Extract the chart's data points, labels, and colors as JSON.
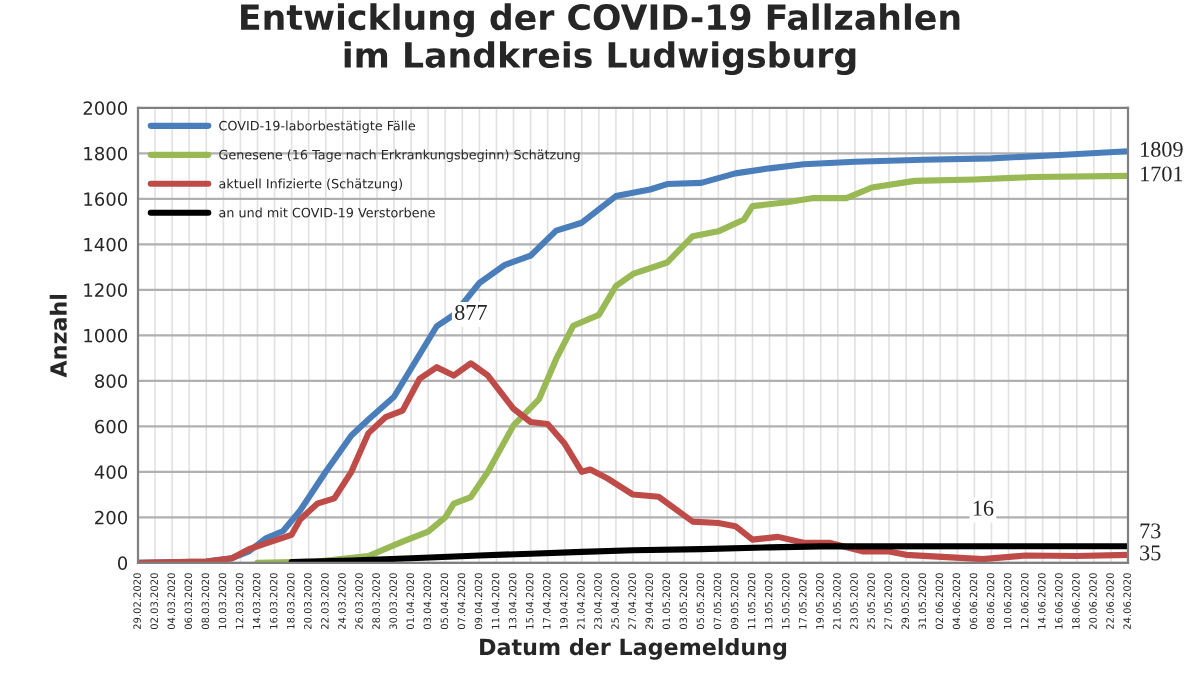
{
  "chart_data": {
    "type": "line",
    "title": "Entwicklung der COVID-19 Fallzahlen\nim Landkreis Ludwigsburg",
    "xlabel": "Datum der Lagemeldung",
    "ylabel": "Anzahl",
    "xlim": [
      "2020-02-29",
      "2020-06-24"
    ],
    "ylim": [
      0,
      2000
    ],
    "yticks": [
      0,
      200,
      400,
      600,
      800,
      1000,
      1200,
      1400,
      1600,
      1800,
      2000
    ],
    "xticks": [
      {
        "value": "2020-02-29",
        "label": "29.02.2020"
      },
      {
        "value": "2020-03-02",
        "label": "02.03.2020"
      },
      {
        "value": "2020-03-04",
        "label": "04.03.2020"
      },
      {
        "value": "2020-03-06",
        "label": "06.03.2020"
      },
      {
        "value": "2020-03-08",
        "label": "08.03.2020"
      },
      {
        "value": "2020-03-10",
        "label": "10.03.2020"
      },
      {
        "value": "2020-03-12",
        "label": "12.03.2020"
      },
      {
        "value": "2020-03-14",
        "label": "14.03.2020"
      },
      {
        "value": "2020-03-16",
        "label": "16.03.2020"
      },
      {
        "value": "2020-03-18",
        "label": "18.03.2020"
      },
      {
        "value": "2020-03-20",
        "label": "20.03.2020"
      },
      {
        "value": "2020-03-22",
        "label": "22.03.2020"
      },
      {
        "value": "2020-03-24",
        "label": "24.03.2020"
      },
      {
        "value": "2020-03-26",
        "label": "26.03.2020"
      },
      {
        "value": "2020-03-28",
        "label": "28.03.2020"
      },
      {
        "value": "2020-03-30",
        "label": "30.03.2020"
      },
      {
        "value": "2020-04-01",
        "label": "01.04.2020"
      },
      {
        "value": "2020-04-03",
        "label": "03.04.2020"
      },
      {
        "value": "2020-04-05",
        "label": "05.04.2020"
      },
      {
        "value": "2020-04-07",
        "label": "07.04.2020"
      },
      {
        "value": "2020-04-09",
        "label": "09.04.2020"
      },
      {
        "value": "2020-04-11",
        "label": "11.04.2020"
      },
      {
        "value": "2020-04-13",
        "label": "13.04.2020"
      },
      {
        "value": "2020-04-15",
        "label": "15.04.2020"
      },
      {
        "value": "2020-04-17",
        "label": "17.04.2020"
      },
      {
        "value": "2020-04-19",
        "label": "19.04.2020"
      },
      {
        "value": "2020-04-21",
        "label": "21.04.2020"
      },
      {
        "value": "2020-04-23",
        "label": "23.04.2020"
      },
      {
        "value": "2020-04-25",
        "label": "25.04.2020"
      },
      {
        "value": "2020-04-27",
        "label": "27.04.2020"
      },
      {
        "value": "2020-04-29",
        "label": "29.04.2020"
      },
      {
        "value": "2020-05-01",
        "label": "01.05.2020"
      },
      {
        "value": "2020-05-03",
        "label": "03.05.2020"
      },
      {
        "value": "2020-05-05",
        "label": "05.05.2020"
      },
      {
        "value": "2020-05-07",
        "label": "07.05.2020"
      },
      {
        "value": "2020-05-09",
        "label": "09.05.2020"
      },
      {
        "value": "2020-05-11",
        "label": "11.05.2020"
      },
      {
        "value": "2020-05-13",
        "label": "13.05.2020"
      },
      {
        "value": "2020-05-15",
        "label": "15.05.2020"
      },
      {
        "value": "2020-05-17",
        "label": "17.05.2020"
      },
      {
        "value": "2020-05-19",
        "label": "19.05.2020"
      },
      {
        "value": "2020-05-21",
        "label": "21.05.2020"
      },
      {
        "value": "2020-05-23",
        "label": "23.05.2020"
      },
      {
        "value": "2020-05-25",
        "label": "25.05.2020"
      },
      {
        "value": "2020-05-27",
        "label": "27.05.2020"
      },
      {
        "value": "2020-05-29",
        "label": "29.05.2020"
      },
      {
        "value": "2020-05-31",
        "label": "31.05.2020"
      },
      {
        "value": "2020-06-02",
        "label": "02.06.2020"
      },
      {
        "value": "2020-06-04",
        "label": "04.06.2020"
      },
      {
        "value": "2020-06-06",
        "label": "06.06.2020"
      },
      {
        "value": "2020-06-08",
        "label": "08.06.2020"
      },
      {
        "value": "2020-06-10",
        "label": "10.06.2020"
      },
      {
        "value": "2020-06-12",
        "label": "12.06.2020"
      },
      {
        "value": "2020-06-14",
        "label": "14.06.2020"
      },
      {
        "value": "2020-06-16",
        "label": "16.06.2020"
      },
      {
        "value": "2020-06-18",
        "label": "18.06.2020"
      },
      {
        "value": "2020-06-20",
        "label": "20.06.2020"
      },
      {
        "value": "2020-06-22",
        "label": "22.06.2020"
      },
      {
        "value": "2020-06-24",
        "label": "24.06.2020"
      }
    ],
    "grid": true,
    "legend": "top left",
    "line_style": "solid",
    "marker": "none",
    "series": [
      {
        "name": "COVID-19-laborbestätigte Fälle",
        "color": "#4a7ebb",
        "x": [
          "2020-02-29",
          "2020-03-08",
          "2020-03-11",
          "2020-03-13",
          "2020-03-15",
          "2020-03-17",
          "2020-03-19",
          "2020-03-22",
          "2020-03-25",
          "2020-03-27",
          "2020-03-30",
          "2020-04-04",
          "2020-04-06",
          "2020-04-09",
          "2020-04-12",
          "2020-04-15",
          "2020-04-18",
          "2020-04-21",
          "2020-04-25",
          "2020-04-29",
          "2020-05-01",
          "2020-05-05",
          "2020-05-09",
          "2020-05-13",
          "2020-05-17",
          "2020-05-23",
          "2020-05-31",
          "2020-06-08",
          "2020-06-16",
          "2020-06-24"
        ],
        "values": [
          0,
          5,
          20,
          50,
          108,
          140,
          230,
          400,
          560,
          630,
          730,
          1040,
          1090,
          1230,
          1310,
          1350,
          1460,
          1495,
          1612,
          1641,
          1665,
          1670,
          1712,
          1734,
          1752,
          1763,
          1772,
          1778,
          1793,
          1809
        ]
      },
      {
        "name": "Genesene (16 Tage nach Erkrankungsbeginn) Schätzung",
        "color": "#98b954",
        "x": [
          "2020-03-14",
          "2020-03-21",
          "2020-03-27",
          "2020-03-31",
          "2020-04-03",
          "2020-04-05",
          "2020-04-06",
          "2020-04-08",
          "2020-04-10",
          "2020-04-13",
          "2020-04-16",
          "2020-04-18",
          "2020-04-20",
          "2020-04-23",
          "2020-04-25",
          "2020-04-27",
          "2020-05-01",
          "2020-05-04",
          "2020-05-07",
          "2020-05-10",
          "2020-05-11",
          "2020-05-15",
          "2020-05-18",
          "2020-05-22",
          "2020-05-25",
          "2020-05-30",
          "2020-06-06",
          "2020-06-13",
          "2020-06-24"
        ],
        "values": [
          0,
          5,
          30,
          93,
          137,
          200,
          260,
          289,
          400,
          604,
          720,
          896,
          1042,
          1090,
          1217,
          1270,
          1320,
          1436,
          1457,
          1509,
          1568,
          1585,
          1603,
          1603,
          1650,
          1679,
          1685,
          1696,
          1701
        ]
      },
      {
        "name": "aktuell Infizierte (Schätzung)",
        "color": "#be4b48",
        "x": [
          "2020-02-29",
          "2020-03-08",
          "2020-03-11",
          "2020-03-13",
          "2020-03-15",
          "2020-03-18",
          "2020-03-19",
          "2020-03-21",
          "2020-03-23",
          "2020-03-25",
          "2020-03-27",
          "2020-03-29",
          "2020-03-31",
          "2020-04-02",
          "2020-04-04",
          "2020-04-06",
          "2020-04-08",
          "2020-04-10",
          "2020-04-13",
          "2020-04-15",
          "2020-04-17",
          "2020-04-19",
          "2020-04-21",
          "2020-04-22",
          "2020-04-24",
          "2020-04-27",
          "2020-04-30",
          "2020-05-04",
          "2020-05-07",
          "2020-05-09",
          "2020-05-11",
          "2020-05-14",
          "2020-05-17",
          "2020-05-20",
          "2020-05-24",
          "2020-05-27",
          "2020-05-29",
          "2020-06-07",
          "2020-06-12",
          "2020-06-18",
          "2020-06-24"
        ],
        "values": [
          0,
          5,
          20,
          60,
          85,
          123,
          190,
          260,
          283,
          400,
          570,
          640,
          669,
          809,
          860,
          823,
          877,
          823,
          677,
          619,
          610,
          523,
          400,
          410,
          371,
          300,
          290,
          181,
          175,
          161,
          102,
          114,
          88,
          88,
          50,
          50,
          35,
          16,
          32,
          30,
          35
        ]
      },
      {
        "name": "an und mit COVID-19 Verstorbene",
        "color": "#000000",
        "x": [
          "2020-03-18",
          "2020-03-25",
          "2020-04-01",
          "2020-04-09",
          "2020-04-15",
          "2020-04-21",
          "2020-04-27",
          "2020-05-05",
          "2020-05-13",
          "2020-05-19",
          "2020-06-24"
        ],
        "values": [
          3,
          10,
          20,
          32,
          40,
          48,
          55,
          60,
          68,
          72,
          73
        ]
      }
    ],
    "annotations": [
      {
        "text": "877",
        "x": "2020-04-08",
        "y": 877
      },
      {
        "text": "1809",
        "x": "2020-06-24",
        "y": 1809
      },
      {
        "text": "1701",
        "x": "2020-06-24",
        "y": 1701
      },
      {
        "text": "16",
        "x": "2020-06-07",
        "y": 16
      },
      {
        "text": "73",
        "x": "2020-06-24",
        "y": 73
      },
      {
        "text": "35",
        "x": "2020-06-24",
        "y": 35
      }
    ]
  }
}
